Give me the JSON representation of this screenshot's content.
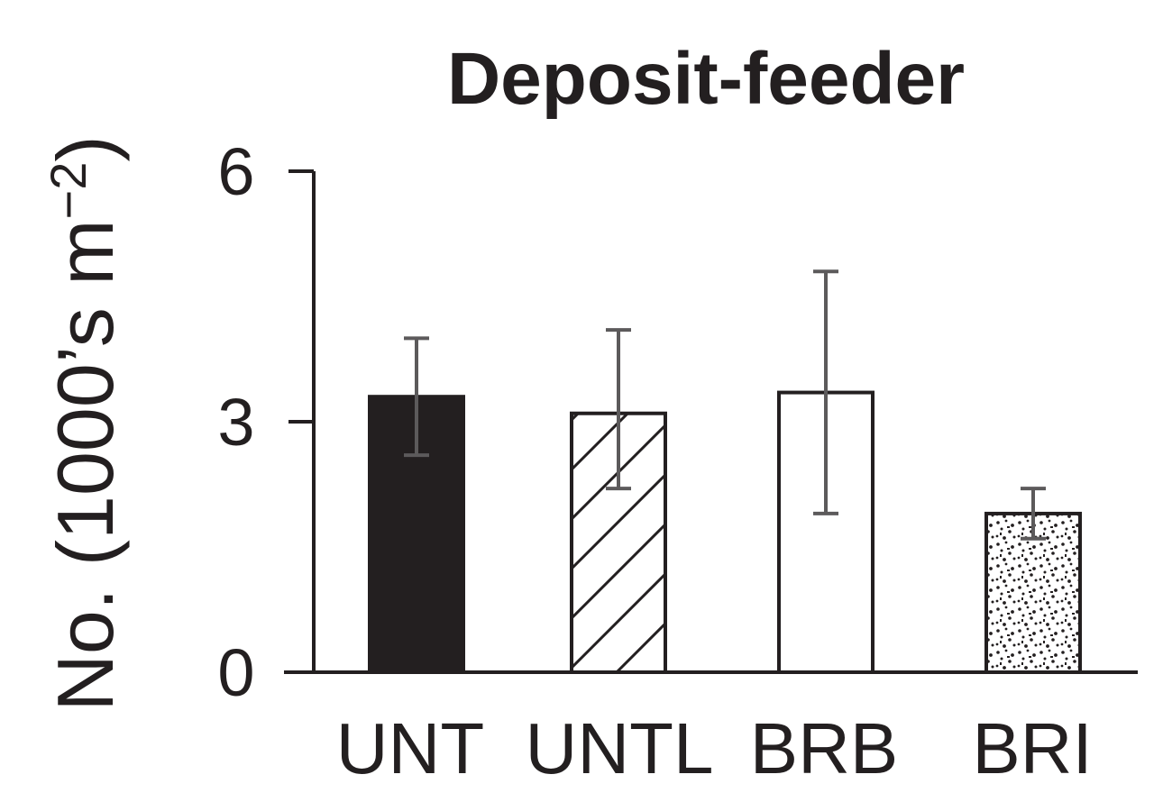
{
  "chart_data": {
    "type": "bar",
    "title": "Deposit-feeder",
    "ylabel_main": "No. (1000’s m",
    "ylabel_sup": "−2",
    "ylabel_close": ")",
    "xlabel": "",
    "categories": [
      "UNT",
      "UNTL",
      "BRB",
      "BRI"
    ],
    "values": [
      3.3,
      3.1,
      3.35,
      1.9
    ],
    "error_low": [
      2.6,
      2.2,
      1.9,
      1.6
    ],
    "error_high": [
      4.0,
      4.1,
      4.8,
      2.2
    ],
    "fills": [
      "solid",
      "hatched",
      "white",
      "stippled"
    ],
    "ylim": [
      0,
      6
    ],
    "yticks": [
      0,
      3,
      6
    ],
    "grid": false,
    "legend": "none",
    "colors": {
      "ink": "#231f20",
      "error_bar": "#5c5a5b",
      "background": "#ffffff"
    }
  }
}
